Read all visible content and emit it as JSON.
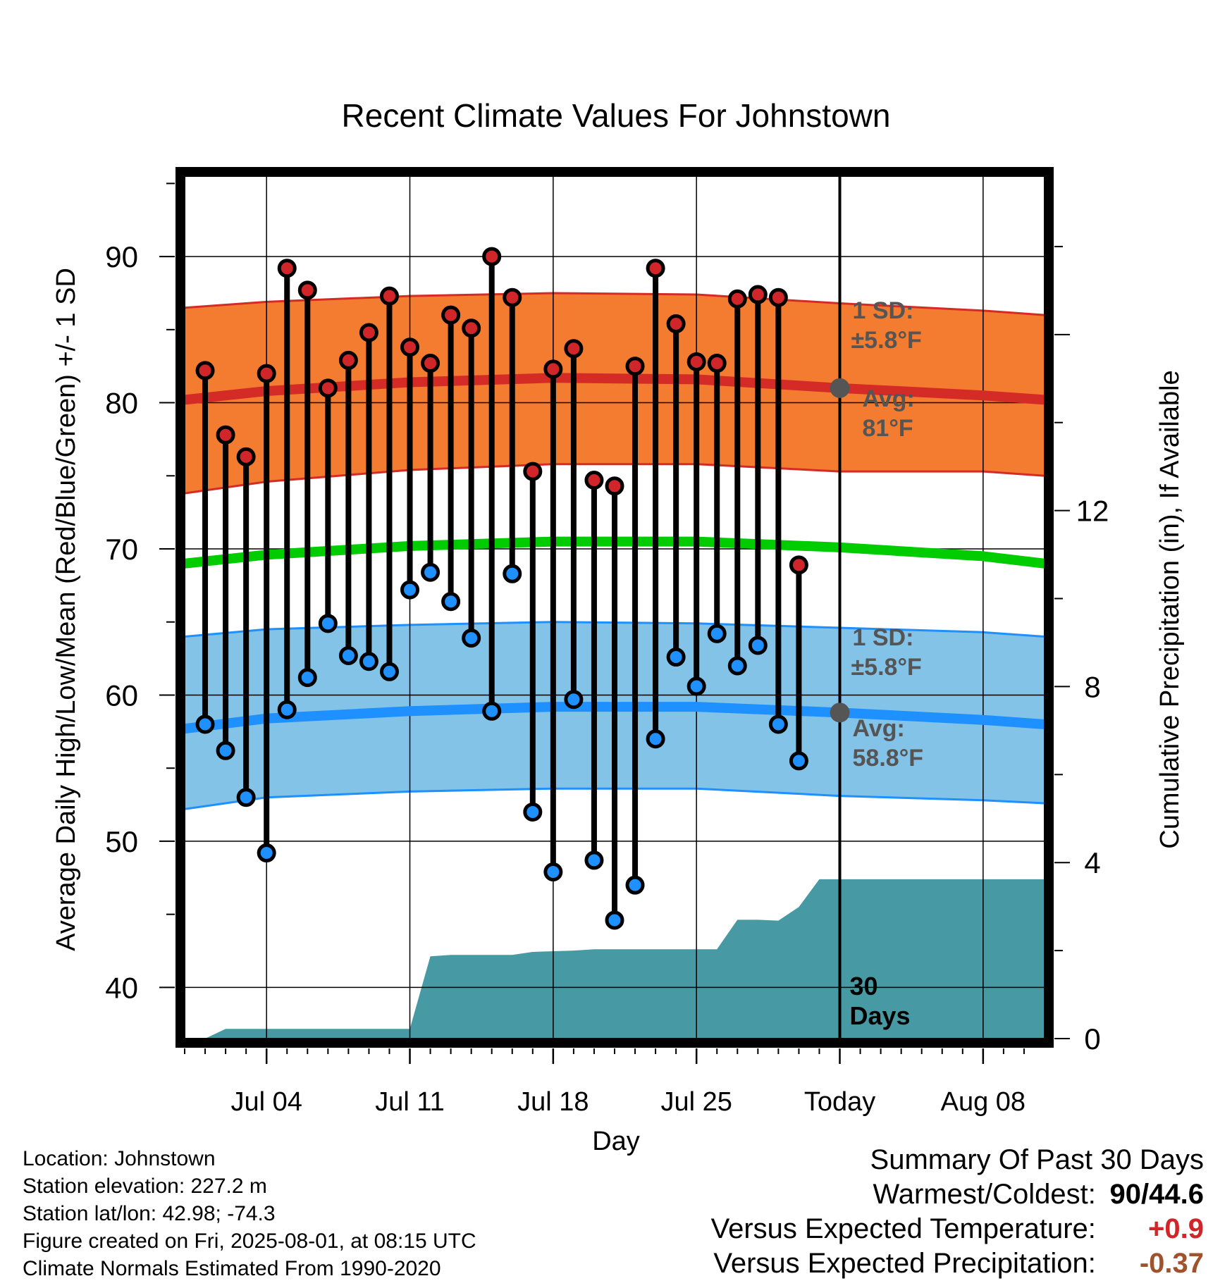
{
  "chart_data": {
    "type": "line",
    "title": "Recent Climate Values For Johnstown",
    "xlabel": "Day",
    "ylabel": "Average Daily High/Low/Mean (Red/Blue/Green) +/- 1 SD",
    "y2label": "Cumulative Precipitation (in), If Available",
    "ylim": [
      36.5,
      95.5
    ],
    "y2lim": [
      0,
      19.6
    ],
    "xlim": [
      "Jun 30",
      "Aug 11"
    ],
    "yticks": [
      "40",
      "50",
      "60",
      "70",
      "80",
      "90"
    ],
    "y2ticks": [
      "0",
      "4",
      "8",
      "12"
    ],
    "xticks": [
      "Jul 04",
      "Jul 11",
      "Jul 18",
      "Jul 25",
      "Today",
      "Aug 08"
    ],
    "grid": true,
    "today": "Aug 01",
    "days": [
      "Jul 01",
      "Jul 02",
      "Jul 03",
      "Jul 04",
      "Jul 05",
      "Jul 06",
      "Jul 07",
      "Jul 08",
      "Jul 09",
      "Jul 10",
      "Jul 11",
      "Jul 12",
      "Jul 13",
      "Jul 14",
      "Jul 15",
      "Jul 16",
      "Jul 17",
      "Jul 18",
      "Jul 19",
      "Jul 20",
      "Jul 21",
      "Jul 22",
      "Jul 23",
      "Jul 24",
      "Jul 25",
      "Jul 26",
      "Jul 27",
      "Jul 28",
      "Jul 29",
      "Jul 30",
      "Jul 31"
    ],
    "highs": [
      82.2,
      77.8,
      76.3,
      82.0,
      89.2,
      87.7,
      81.0,
      82.9,
      84.8,
      87.3,
      83.8,
      82.7,
      86.0,
      85.1,
      90.0,
      87.2,
      75.3,
      82.3,
      83.7,
      74.7,
      74.3,
      82.5,
      89.2,
      85.4,
      82.8,
      82.7,
      87.1,
      87.4,
      87.2,
      68.9,
      null
    ],
    "lows": [
      58.0,
      56.2,
      53.0,
      49.2,
      59.0,
      61.2,
      64.9,
      62.7,
      62.3,
      61.6,
      67.2,
      68.4,
      66.4,
      63.9,
      58.9,
      68.3,
      52.0,
      47.9,
      59.7,
      48.7,
      44.6,
      47.0,
      57.0,
      62.6,
      60.6,
      64.2,
      62.0,
      63.4,
      58.0,
      55.5,
      null
    ],
    "normals": {
      "days": [
        "Jun 30",
        "Jul 04",
        "Jul 11",
        "Jul 18",
        "Jul 25",
        "Aug 01",
        "Aug 08",
        "Aug 11"
      ],
      "high_avg": [
        80.2,
        80.8,
        81.4,
        81.7,
        81.6,
        81.0,
        80.5,
        80.2
      ],
      "high_sd_upper": [
        86.5,
        86.9,
        87.3,
        87.5,
        87.4,
        86.8,
        86.3,
        86.0
      ],
      "high_sd_lower": [
        73.8,
        74.6,
        75.4,
        75.8,
        75.8,
        75.3,
        75.3,
        75.0
      ],
      "mean_avg": [
        69.0,
        69.6,
        70.2,
        70.5,
        70.5,
        70.1,
        69.5,
        69.0
      ],
      "low_avg": [
        57.7,
        58.4,
        58.9,
        59.2,
        59.2,
        58.8,
        58.3,
        58.0
      ],
      "low_sd_upper": [
        64.0,
        64.5,
        64.8,
        65.0,
        64.9,
        64.6,
        64.3,
        64.0
      ],
      "low_sd_lower": [
        52.2,
        53.0,
        53.4,
        53.6,
        53.6,
        53.1,
        52.8,
        52.6
      ]
    },
    "precip_cumulative": {
      "days": [
        "Jun 30",
        "Jul 01",
        "Jul 02",
        "Jul 11",
        "Jul 12",
        "Jul 13",
        "Jul 16",
        "Jul 17",
        "Jul 19",
        "Jul 20",
        "Jul 26",
        "Jul 27",
        "Jul 28",
        "Jul 29",
        "Jul 30",
        "Jul 31",
        "Aug 11"
      ],
      "values": [
        0.0,
        0.0,
        0.22,
        0.22,
        1.87,
        1.9,
        1.9,
        1.97,
        2.0,
        2.03,
        2.03,
        2.7,
        2.7,
        2.68,
        2.99,
        3.62,
        3.62
      ]
    },
    "annotations": {
      "high_sd_label": "1 SD:",
      "high_sd_value": "±5.8°F",
      "high_avg_label": "Avg:",
      "high_avg_value": "81°F",
      "low_sd_label": "1 SD:",
      "low_sd_value": "±5.8°F",
      "low_avg_label": "Avg:",
      "low_avg_value": "58.8°F",
      "today_marker_line1": "30",
      "today_marker_line2": "Days"
    },
    "colors": {
      "high_band": "#F47C30",
      "high_line": "#D52B27",
      "high_point": "#D0262A",
      "mean_line": "#00CC00",
      "low_band": "#84C3E8",
      "low_line": "#1E90FF",
      "low_point": "#1E90FF",
      "precip_fill": "#4799A4",
      "annotation_text": "#555555",
      "today_dot": "#555555"
    }
  },
  "footer": {
    "location": "Location: Johnstown",
    "elevation": "Station elevation: 227.2 m",
    "latlon": "Station lat/lon: 42.98; -74.3",
    "created": "Figure created on Fri, 2025-08-01, at 08:15 UTC",
    "normals": "Climate Normals Estimated From 1990-2020"
  },
  "summary": {
    "title": "Summary Of Past 30 Days",
    "warmest_coldest_label": "Warmest/Coldest:",
    "warmest_coldest_value": "90/44.6",
    "temp_label": "Versus Expected Temperature:",
    "temp_value": "+0.9",
    "temp_color": "#D0262A",
    "precip_label": "Versus Expected Precipitation:",
    "precip_value": "-0.37",
    "precip_color": "#A0522D"
  }
}
